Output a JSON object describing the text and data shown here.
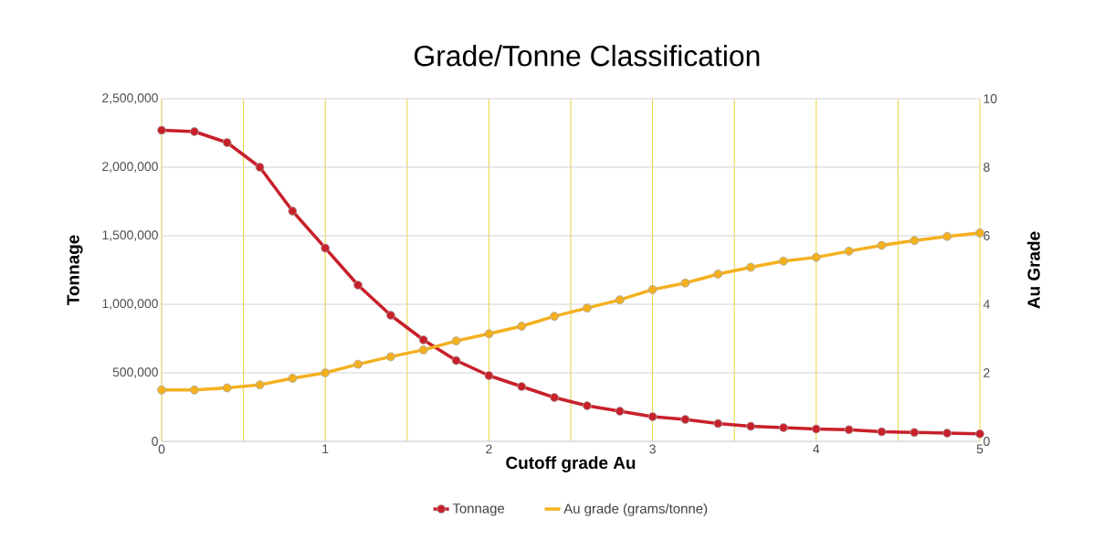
{
  "chart_data": {
    "type": "line",
    "title": "Grade/Tonne Classification",
    "xlabel": "Cutoff grade Au",
    "ylabel": "Tonnage",
    "y2label": "Au Grade",
    "x": [
      0,
      0.2,
      0.4,
      0.6,
      0.8,
      1.0,
      1.2,
      1.4,
      1.6,
      1.8,
      2.0,
      2.2,
      2.4,
      2.6,
      2.8,
      3.0,
      3.2,
      3.4,
      3.6,
      3.8,
      4.0,
      4.2,
      4.4,
      4.6,
      4.8,
      5.0
    ],
    "series": [
      {
        "name": "Tonnage",
        "color": "#c8202a",
        "values": [
          2270000,
          2260000,
          2180000,
          2000000,
          1680000,
          1410000,
          1140000,
          920000,
          740000,
          590000,
          480000,
          400000,
          320000,
          260000,
          220000,
          180000,
          160000,
          130000,
          110000,
          100000,
          90000,
          85000,
          70000,
          65000,
          60000,
          55000
        ]
      },
      {
        "name": "Au grade (grams/tonne)",
        "color": "#f5b01e",
        "axis": "y2",
        "values": [
          1.5,
          1.5,
          1.56,
          1.65,
          1.84,
          2.0,
          2.25,
          2.47,
          2.67,
          2.93,
          3.14,
          3.36,
          3.65,
          3.89,
          4.13,
          4.43,
          4.62,
          4.88,
          5.08,
          5.26,
          5.37,
          5.55,
          5.72,
          5.86,
          5.98,
          6.08
        ]
      }
    ],
    "xlim": [
      0,
      5
    ],
    "xticks": [
      0,
      {
        "value": 0.5,
        "label": null
      },
      1,
      {
        "value": 1.5,
        "label": null
      },
      2,
      {
        "value": 2.5,
        "label": null
      },
      3,
      {
        "value": 3.5,
        "label": null
      },
      4,
      {
        "value": 4.5,
        "label": null
      },
      5
    ],
    "ylim": [
      0,
      2500000
    ],
    "yticks": [
      0,
      {
        "value": 500000,
        "label": "500,000"
      },
      {
        "value": 1000000,
        "label": "1,000,000"
      },
      {
        "value": 1500000,
        "label": "1,500,000"
      },
      {
        "value": 2000000,
        "label": "2,000,000"
      },
      {
        "value": 2500000,
        "label": "2,500,000"
      }
    ],
    "y2lim": [
      0,
      10
    ],
    "y2ticks": [
      0,
      2,
      4,
      6,
      8,
      10
    ],
    "grid": true,
    "legend": "bottom",
    "marker": "circle",
    "line_style": "solid"
  }
}
